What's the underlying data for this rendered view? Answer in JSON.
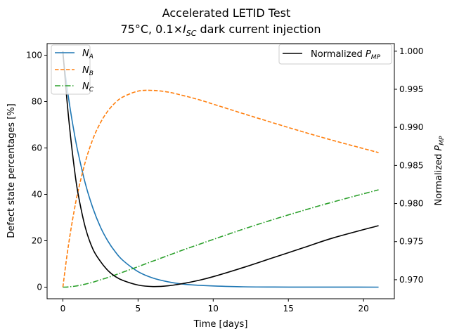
{
  "chart_data": {
    "type": "line",
    "title": {
      "line1": "Accelerated LETID Test",
      "line2_prefix": "75°C, 0.1×",
      "line2_var": "I",
      "line2_sub": "SC",
      "line2_suffix": " dark current injection"
    },
    "xlabel": "Time [days]",
    "ylabel_left": "Defect state percentages [%]",
    "ylabel_right": {
      "base": "Normalized ",
      "var": "P",
      "sub": "MP"
    },
    "xlim": [
      -1.05,
      22.05
    ],
    "ylim_left": [
      -5,
      105
    ],
    "ylim_right": [
      0.9675,
      1.001
    ],
    "xticks": [
      0,
      5,
      10,
      15,
      20
    ],
    "yticks_left": [
      0,
      20,
      40,
      60,
      80,
      100
    ],
    "yticks_right": [
      "0.970",
      "0.975",
      "0.980",
      "0.985",
      "0.990",
      "0.995",
      "1.000"
    ],
    "grid": false,
    "legend_left_placement": "upper-left",
    "legend_right_placement": "upper-right",
    "x": [
      0,
      0.25,
      0.5,
      0.75,
      1,
      1.5,
      2,
      2.5,
      3,
      3.5,
      4,
      5,
      6,
      7,
      8,
      9,
      10,
      12,
      14,
      16,
      18,
      21
    ],
    "series": [
      {
        "name": "N_A",
        "label_base": "N",
        "label_sub": "A",
        "axis": "left",
        "color": "#1f77b4",
        "style": "solid",
        "values": [
          100,
          87.4,
          76.3,
          66.7,
          58.3,
          44.5,
          34.0,
          25.9,
          19.8,
          15.1,
          11.5,
          6.7,
          3.9,
          2.3,
          1.3,
          0.8,
          0.5,
          0.15,
          0.05,
          0.02,
          0.01,
          0.0
        ]
      },
      {
        "name": "N_B",
        "label_base": "N",
        "label_sub": "B",
        "axis": "left",
        "color": "#ff7f0e",
        "style": "dashed",
        "values": [
          0,
          12.6,
          23.5,
          32.9,
          41.1,
          54.2,
          63.9,
          70.9,
          76.0,
          79.6,
          82.0,
          84.5,
          84.8,
          84.1,
          82.6,
          80.9,
          78.9,
          74.8,
          70.8,
          66.9,
          63.2,
          58.0
        ]
      },
      {
        "name": "N_C",
        "label_base": "N",
        "label_sub": "C",
        "axis": "left",
        "color": "#2ca02c",
        "style": "dashdot",
        "values": [
          0,
          0.02,
          0.21,
          0.38,
          0.62,
          1.31,
          2.13,
          3.16,
          4.17,
          5.3,
          6.47,
          8.84,
          11.25,
          13.63,
          16.05,
          18.32,
          20.58,
          25.01,
          29.16,
          33.08,
          36.78,
          41.97
        ]
      },
      {
        "name": "Normalized P_MP",
        "label_base": "Normalized ",
        "label_var": "P",
        "label_sub": "MP",
        "axis": "right",
        "color": "#000000",
        "style": "solid",
        "values": [
          1.0,
          0.994,
          0.989,
          0.9848,
          0.9814,
          0.9768,
          0.974,
          0.9724,
          0.9712,
          0.9704,
          0.9699,
          0.9693,
          0.9691,
          0.9692,
          0.9695,
          0.9699,
          0.9704,
          0.9716,
          0.9729,
          0.9742,
          0.9755,
          0.9771
        ]
      }
    ]
  }
}
